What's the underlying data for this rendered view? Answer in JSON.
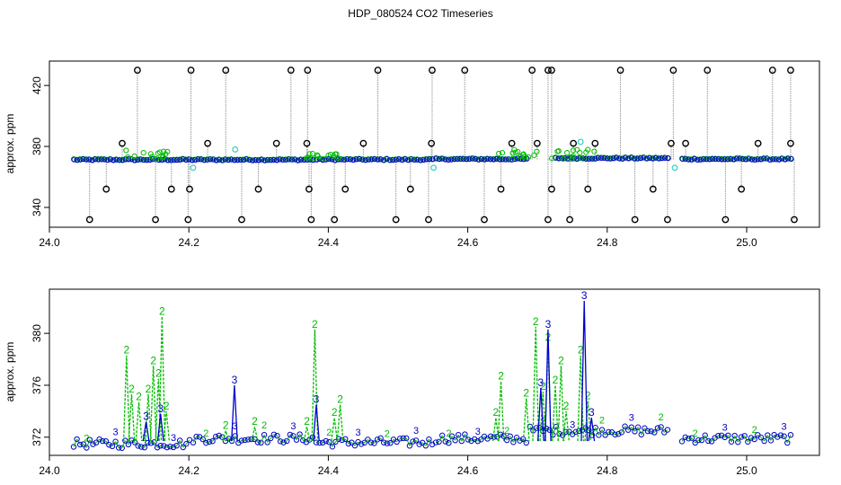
{
  "title": "HDP_080524  CO2 Timeseries",
  "colors": {
    "black": "#000000",
    "gray": "#9a9a9a",
    "green": "#00bb00",
    "blue": "#0000cc",
    "cyan": "#33cccc"
  },
  "chart_data": [
    {
      "type": "scatter",
      "title": "",
      "xlabel": "",
      "ylabel": "approx. ppm",
      "xlim": [
        24.0,
        25.0
      ],
      "ylim": [
        327,
        436
      ],
      "x_ticks": [
        24.0,
        24.2,
        24.4,
        24.6,
        24.8,
        25.0
      ],
      "x_tick_labels": [
        "24.0",
        "24.2",
        "24.4",
        "24.6",
        "24.8",
        "25.0"
      ],
      "y_ticks": [
        340,
        380,
        420
      ],
      "y_tick_labels": [
        "340",
        "380",
        "420"
      ],
      "baseline_segments": [
        {
          "x": [
            24.0,
            24.33
          ],
          "y": [
            371.5,
            371.5
          ]
        },
        {
          "x": [
            24.335,
            24.495
          ],
          "y": [
            371.6,
            371.6
          ]
        },
        {
          "x": [
            24.5,
            24.625
          ],
          "y": [
            371.9,
            371.9
          ]
        },
        {
          "x": [
            24.665,
            24.82
          ],
          "y": [
            372.5,
            372.5
          ]
        },
        {
          "x": [
            24.84,
            24.99
          ],
          "y": [
            371.9,
            371.9
          ]
        }
      ],
      "spikes_high": {
        "value": 430,
        "x": [
          24.088,
          24.162,
          24.21,
          24.3,
          24.323,
          24.42,
          24.495,
          24.54,
          24.633,
          24.655,
          24.66,
          24.755,
          24.828,
          24.875,
          24.965,
          24.99
        ]
      },
      "spikes_low": {
        "value": 332,
        "x": [
          24.022,
          24.113,
          24.158,
          24.232,
          24.328,
          24.36,
          24.445,
          24.49,
          24.567,
          24.655,
          24.685,
          24.775,
          24.82,
          24.9,
          24.995
        ]
      },
      "spikes_mid_low": {
        "value": 352,
        "x": [
          24.045,
          24.135,
          24.16,
          24.255,
          24.325,
          24.375,
          24.465,
          24.59,
          24.66,
          24.71,
          24.8,
          24.922
        ]
      },
      "spikes_mid_high": {
        "value": 382,
        "x": [
          24.067,
          24.185,
          24.28,
          24.322,
          24.4,
          24.494,
          24.605,
          24.64,
          24.69,
          24.72,
          24.825,
          24.845,
          24.945,
          24.99
        ]
      },
      "cyan_points": {
        "x": [
          24.165,
          24.223,
          24.497,
          24.7,
          24.83
        ],
        "y": [
          366,
          378,
          366,
          383,
          366
        ]
      },
      "series": [
        {
          "name": "",
          "symbol": "circle",
          "color": "black"
        },
        {
          "name": "",
          "symbol": "circle",
          "color": "green"
        },
        {
          "name": "",
          "symbol": "circle",
          "color": "blue"
        },
        {
          "name": "",
          "symbol": "circle",
          "color": "cyan"
        }
      ]
    },
    {
      "type": "line",
      "title": "",
      "xlabel": "",
      "ylabel": "approx. ppm",
      "xlim": [
        24.0,
        25.0
      ],
      "ylim": [
        370.6,
        383.4
      ],
      "x_ticks": [
        24.0,
        24.2,
        24.4,
        24.6,
        24.8,
        25.0
      ],
      "x_tick_labels": [
        "24.0",
        "24.2",
        "24.4",
        "24.6",
        "24.8",
        "25.0"
      ],
      "y_ticks": [
        372,
        376,
        380
      ],
      "y_tick_labels": [
        "372",
        "376",
        "380"
      ],
      "baseline_segments": [
        {
          "x": [
            24.0,
            24.16
          ],
          "y": [
            371.5,
            371.5
          ]
        },
        {
          "x": [
            24.165,
            24.33
          ],
          "y": [
            371.9,
            371.9
          ]
        },
        {
          "x": [
            24.335,
            24.495
          ],
          "y": [
            371.6,
            371.6
          ]
        },
        {
          "x": [
            24.5,
            24.625
          ],
          "y": [
            371.9,
            371.9
          ]
        },
        {
          "x": [
            24.63,
            24.82
          ],
          "y": [
            372.5,
            372.5
          ]
        },
        {
          "x": [
            24.84,
            24.99
          ],
          "y": [
            371.9,
            371.9
          ]
        }
      ],
      "green_peaks": [
        {
          "x": 24.073,
          "y": 378.3
        },
        {
          "x": 24.08,
          "y": 375.3
        },
        {
          "x": 24.09,
          "y": 374.7
        },
        {
          "x": 24.103,
          "y": 375.3
        },
        {
          "x": 24.11,
          "y": 377.5
        },
        {
          "x": 24.117,
          "y": 376.5
        },
        {
          "x": 24.122,
          "y": 381.3
        },
        {
          "x": 24.128,
          "y": 374.0
        },
        {
          "x": 24.21,
          "y": 372.5
        },
        {
          "x": 24.25,
          "y": 372.8
        },
        {
          "x": 24.322,
          "y": 372.8
        },
        {
          "x": 24.333,
          "y": 380.3
        },
        {
          "x": 24.36,
          "y": 373.5
        },
        {
          "x": 24.368,
          "y": 374.5
        },
        {
          "x": 24.583,
          "y": 373.5
        },
        {
          "x": 24.59,
          "y": 376.3
        },
        {
          "x": 24.625,
          "y": 375.0
        },
        {
          "x": 24.638,
          "y": 380.5
        },
        {
          "x": 24.648,
          "y": 375.5
        },
        {
          "x": 24.655,
          "y": 379.3
        },
        {
          "x": 24.665,
          "y": 376.0
        },
        {
          "x": 24.673,
          "y": 377.5
        },
        {
          "x": 24.68,
          "y": 374.0
        },
        {
          "x": 24.7,
          "y": 378.3
        },
        {
          "x": 24.71,
          "y": 374.8
        }
      ],
      "blue_peaks": [
        {
          "x": 24.1,
          "y": 373.2
        },
        {
          "x": 24.12,
          "y": 373.8
        },
        {
          "x": 24.222,
          "y": 376.0
        },
        {
          "x": 24.335,
          "y": 374.5
        },
        {
          "x": 24.645,
          "y": 375.8
        },
        {
          "x": 24.655,
          "y": 380.3
        },
        {
          "x": 24.705,
          "y": 382.5
        },
        {
          "x": 24.715,
          "y": 373.5
        }
      ],
      "series": [
        {
          "name": "",
          "symbol": "2",
          "color": "green"
        },
        {
          "name": "",
          "symbol": "3",
          "color": "blue"
        },
        {
          "name": "",
          "symbol": "circle",
          "color": "blue"
        }
      ]
    }
  ]
}
